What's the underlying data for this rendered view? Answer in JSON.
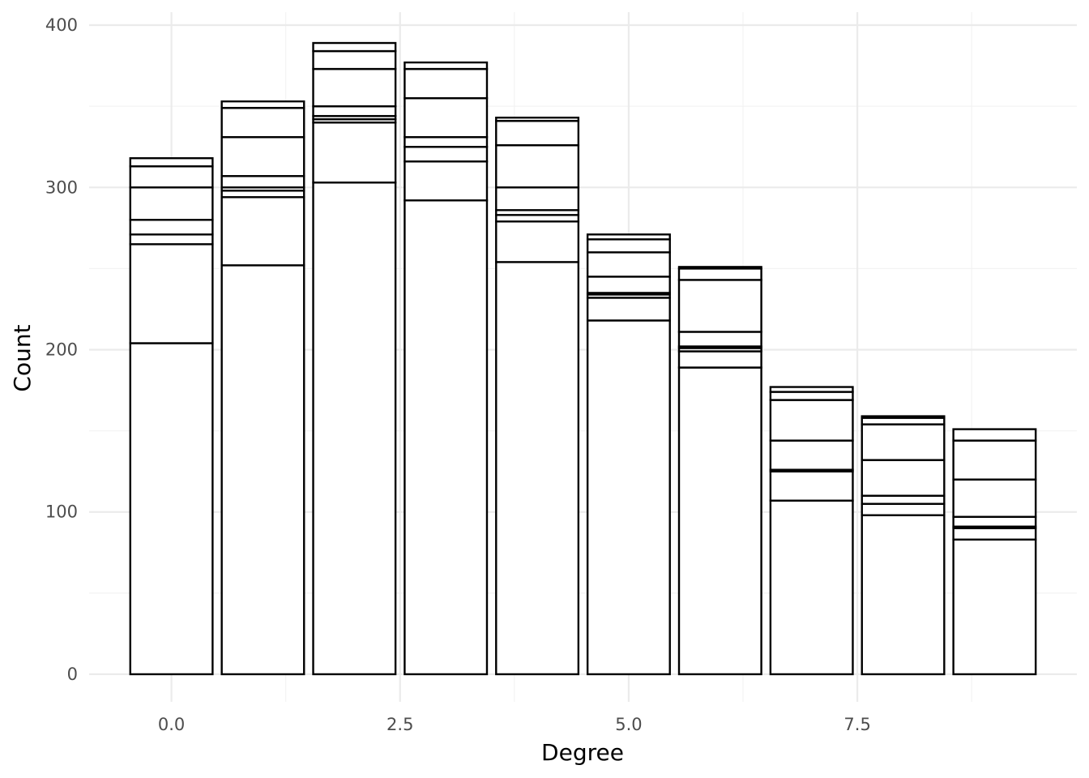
{
  "chart_data": {
    "type": "bar",
    "stacked": true,
    "xlabel": "Degree",
    "ylabel": "Count",
    "xlim": [
      -0.9,
      9.9
    ],
    "ylim": [
      -17,
      408
    ],
    "x_ticks": [
      0.0,
      2.5,
      5.0,
      7.5
    ],
    "x_tick_labels": [
      "0.0",
      "2.5",
      "5.0",
      "7.5"
    ],
    "x_minor_ticks": [
      1.25,
      3.75,
      6.25,
      8.75
    ],
    "y_ticks": [
      0,
      100,
      200,
      300,
      400
    ],
    "y_tick_labels": [
      "0",
      "100",
      "200",
      "300",
      "400"
    ],
    "y_minor_ticks": [
      50,
      150,
      250,
      350
    ],
    "grid": true,
    "legend": "none",
    "bar_width": 0.9,
    "bars": [
      {
        "x": 0,
        "cumulative": [
          204,
          265,
          271,
          280,
          300,
          313,
          318
        ]
      },
      {
        "x": 1,
        "cumulative": [
          252,
          294,
          298,
          300,
          307,
          331,
          349,
          353
        ]
      },
      {
        "x": 2,
        "cumulative": [
          303,
          340,
          342,
          344,
          350,
          373,
          384,
          389
        ]
      },
      {
        "x": 3,
        "cumulative": [
          292,
          316,
          325,
          331,
          355,
          373,
          377
        ]
      },
      {
        "x": 4,
        "cumulative": [
          254,
          279,
          283,
          286,
          300,
          326,
          341,
          343
        ]
      },
      {
        "x": 5,
        "cumulative": [
          218,
          232,
          234,
          235,
          245,
          260,
          268,
          271
        ]
      },
      {
        "x": 6,
        "cumulative": [
          189,
          199,
          201,
          202,
          211,
          243,
          250,
          251
        ]
      },
      {
        "x": 7,
        "cumulative": [
          107,
          125,
          126,
          144,
          169,
          174,
          177
        ]
      },
      {
        "x": 8,
        "cumulative": [
          98,
          105,
          110,
          132,
          154,
          158,
          159
        ]
      },
      {
        "x": 9,
        "cumulative": [
          83,
          90,
          91,
          97,
          120,
          144,
          151
        ]
      }
    ]
  }
}
